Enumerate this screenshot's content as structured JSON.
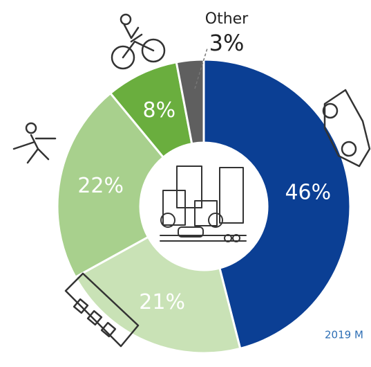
{
  "chart_data": {
    "type": "donut",
    "categories": [
      null,
      null,
      null,
      null,
      "Other"
    ],
    "values": [
      46,
      21,
      22,
      8,
      3
    ],
    "value_labels": [
      "46%",
      "21%",
      "22%",
      "8%",
      "3%"
    ],
    "colors": [
      "#0b3f94",
      "#c9e2b6",
      "#a8d08d",
      "#6aae3e",
      "#5f5f5f"
    ],
    "footnote": "2019 M"
  }
}
